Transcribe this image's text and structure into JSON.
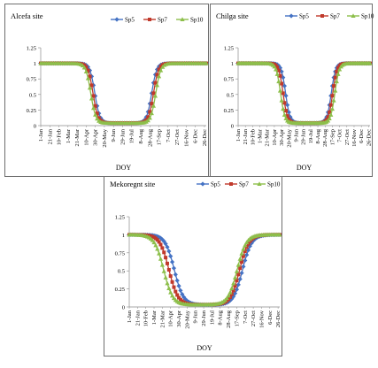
{
  "chart_data": [
    {
      "type": "line",
      "title": "Alcefa site",
      "xlabel": "DOY",
      "ylabel": "",
      "ylim": [
        0,
        1.25
      ],
      "yticks": [
        "0",
        "0.25",
        "0.5",
        "0.75",
        "1",
        "1.25"
      ],
      "xtick_labels": [
        "1-Jan",
        "21-Jan",
        "10-Feb",
        "1-Mar",
        "21-Mar",
        "10-Apr",
        "30-Apr",
        "20-May",
        "9-Jun",
        "29-Jun",
        "19-Jul",
        "8-Aug",
        "28-Aug",
        "17-Sep",
        "7-Oct",
        "27-Oct",
        "16-Nov",
        "6-Dec",
        "26-Dec"
      ],
      "legend_position": "top",
      "series": [
        {
          "name": "Sp5",
          "color": "#4472c4",
          "marker": "diamond",
          "curve": {
            "high": 1.0,
            "low": 0.04,
            "drop_mid": 120,
            "rise_mid": 245,
            "width": 5.5
          }
        },
        {
          "name": "Sp7",
          "color": "#c0392b",
          "marker": "square",
          "curve": {
            "high": 1.0,
            "low": 0.04,
            "drop_mid": 116,
            "rise_mid": 249,
            "width": 5.5
          }
        },
        {
          "name": "Sp10",
          "color": "#8dbf4b",
          "marker": "triangle",
          "curve": {
            "high": 1.0,
            "low": 0.04,
            "drop_mid": 111,
            "rise_mid": 254,
            "width": 5.5
          }
        }
      ]
    },
    {
      "type": "line",
      "title": "Chilga site",
      "xlabel": "DOY",
      "ylabel": "",
      "ylim": [
        0,
        1.25
      ],
      "yticks": [
        "0",
        "0.25",
        "0.5",
        "0.75",
        "1",
        "1.25"
      ],
      "xtick_labels": [
        "1-Jan",
        "21-Jan",
        "10-Feb",
        "1-Mar",
        "21-Mar",
        "10-Apr",
        "30-Apr",
        "20-May",
        "9-Jun",
        "29-Jun",
        "19-Jul",
        "8-Aug",
        "28-Aug",
        "17-Sep",
        "7-Oct",
        "27-Oct",
        "16-Nov",
        "6-Dec",
        "26-Dec"
      ],
      "legend_position": "top-right",
      "series": [
        {
          "name": "Sp5",
          "color": "#4472c4",
          "marker": "diamond",
          "curve": {
            "high": 1.0,
            "low": 0.04,
            "drop_mid": 132,
            "rise_mid": 258,
            "width": 6
          }
        },
        {
          "name": "Sp7",
          "color": "#c0392b",
          "marker": "square",
          "curve": {
            "high": 1.0,
            "low": 0.04,
            "drop_mid": 125,
            "rise_mid": 262,
            "width": 6
          }
        },
        {
          "name": "Sp10",
          "color": "#8dbf4b",
          "marker": "triangle",
          "curve": {
            "high": 1.0,
            "low": 0.04,
            "drop_mid": 118,
            "rise_mid": 268,
            "width": 6
          }
        }
      ]
    },
    {
      "type": "line",
      "title": "Mekoregnt site",
      "xlabel": "DOY",
      "ylabel": "",
      "ylim": [
        0,
        1.25
      ],
      "yticks": [
        "0",
        "0.25",
        "0.5",
        "0.75",
        "1",
        "1.25"
      ],
      "xtick_labels": [
        "1-Jan",
        "21-Jan",
        "10-Feb",
        "1-Mar",
        "21-Mar",
        "10-Apr",
        "30-Apr",
        "20-May",
        "9-Jun",
        "29-Jun",
        "19-Jul",
        "8-Aug",
        "28-Aug",
        "17-Sep",
        "7-Oct",
        "27-Oct",
        "16-Nov",
        "6-Dec",
        "26-Dec"
      ],
      "legend_position": "top-right",
      "series": [
        {
          "name": "Sp5",
          "color": "#4472c4",
          "marker": "diamond",
          "curve": {
            "high": 1.0,
            "low": 0.03,
            "drop_mid": 110,
            "rise_mid": 275,
            "width": 11
          }
        },
        {
          "name": "Sp7",
          "color": "#c0392b",
          "marker": "square",
          "curve": {
            "high": 1.0,
            "low": 0.03,
            "drop_mid": 97,
            "rise_mid": 268,
            "width": 11
          }
        },
        {
          "name": "Sp10",
          "color": "#8dbf4b",
          "marker": "triangle",
          "curve": {
            "high": 1.0,
            "low": 0.03,
            "drop_mid": 84,
            "rise_mid": 262,
            "width": 11
          }
        }
      ]
    }
  ]
}
